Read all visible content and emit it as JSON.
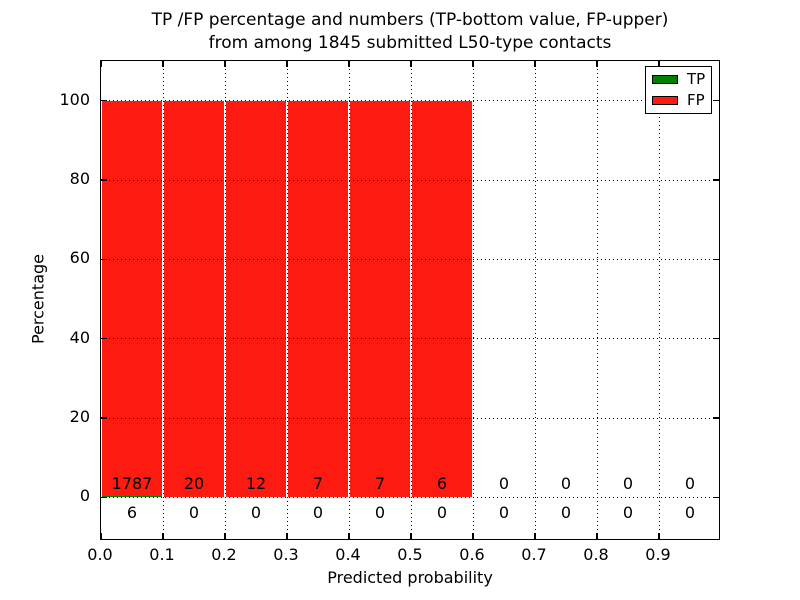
{
  "figure": {
    "title_line1": "TP /FP percentage and numbers (TP-bottom value, FP-upper)",
    "title_line2": "from among 1845 submitted L50-type contacts"
  },
  "axes": {
    "xlabel": "Predicted probability",
    "ylabel": "Percentage",
    "x_tick_labels": [
      "0.0",
      "0.1",
      "0.2",
      "0.3",
      "0.4",
      "0.5",
      "0.6",
      "0.7",
      "0.8",
      "0.9"
    ],
    "y_tick_labels": [
      "0",
      "20",
      "40",
      "60",
      "80",
      "100"
    ]
  },
  "legend": {
    "items": [
      {
        "label": "TP",
        "color": "#008000"
      },
      {
        "label": "FP",
        "color": "#fd1a10"
      }
    ]
  },
  "chart_data": {
    "type": "bar",
    "stacked": true,
    "title": "TP /FP percentage and numbers (TP-bottom value, FP-upper)\nfrom among 1845 submitted L50-type contacts",
    "xlabel": "Predicted probability",
    "ylabel": "Percentage",
    "xlim": [
      0.0,
      1.0
    ],
    "ylim": [
      -11,
      110
    ],
    "x_ticks": [
      0.0,
      0.1,
      0.2,
      0.3,
      0.4,
      0.5,
      0.6,
      0.7,
      0.8,
      0.9
    ],
    "y_ticks": [
      0,
      20,
      40,
      60,
      80,
      100
    ],
    "bin_edges": [
      0.0,
      0.1,
      0.2,
      0.3,
      0.4,
      0.5,
      0.6,
      0.7,
      0.8,
      0.9,
      1.0
    ],
    "grid": true,
    "grid_style": "dotted",
    "legend_position": "upper right",
    "total_contacts": 1845,
    "series": [
      {
        "name": "TP",
        "color": "#008000",
        "counts": [
          6,
          0,
          0,
          0,
          0,
          0,
          0,
          0,
          0,
          0
        ],
        "percent": [
          0.33,
          0,
          0,
          0,
          0,
          0,
          0,
          0,
          0,
          0
        ]
      },
      {
        "name": "FP",
        "color": "#fd1a10",
        "counts": [
          1787,
          20,
          12,
          7,
          7,
          6,
          0,
          0,
          0,
          0
        ],
        "percent": [
          99.67,
          100,
          100,
          100,
          100,
          100,
          0,
          0,
          0,
          0
        ]
      }
    ]
  }
}
